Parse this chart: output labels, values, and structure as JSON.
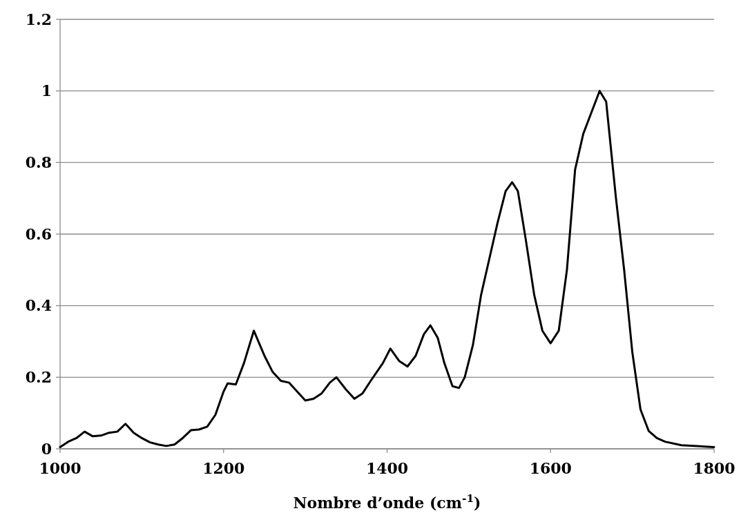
{
  "chart_data": {
    "type": "line",
    "xlabel": "Nombre d’onde (cm$^{-1}$)",
    "xlim": [
      1000,
      1800
    ],
    "xticks": [
      1000,
      1200,
      1400,
      1600,
      1800
    ],
    "ylim": [
      0,
      1.2
    ],
    "yticks": [
      0,
      0.2,
      0.4,
      0.6,
      0.8,
      1,
      1.2
    ],
    "grid": "y",
    "marker": "none",
    "line_style": "solid",
    "series": [
      {
        "color": "#000000",
        "x": [
          1000,
          1010,
          1020,
          1030,
          1040,
          1050,
          1060,
          1070,
          1080,
          1090,
          1100,
          1110,
          1120,
          1130,
          1140,
          1150,
          1160,
          1170,
          1180,
          1190,
          1200,
          1205,
          1215,
          1225,
          1237,
          1250,
          1260,
          1270,
          1280,
          1290,
          1300,
          1310,
          1320,
          1330,
          1338,
          1350,
          1360,
          1370,
          1380,
          1395,
          1404,
          1415,
          1425,
          1435,
          1445,
          1453,
          1462,
          1470,
          1480,
          1488,
          1495,
          1505,
          1515,
          1525,
          1535,
          1545,
          1553,
          1560,
          1570,
          1580,
          1590,
          1600,
          1610,
          1620,
          1630,
          1640,
          1650,
          1660,
          1668,
          1680,
          1690,
          1700,
          1710,
          1720,
          1730,
          1740,
          1760,
          1800
        ],
        "values": [
          0.005,
          0.02,
          0.03,
          0.048,
          0.035,
          0.037,
          0.045,
          0.048,
          0.07,
          0.045,
          0.03,
          0.018,
          0.012,
          0.008,
          0.012,
          0.03,
          0.052,
          0.054,
          0.062,
          0.095,
          0.16,
          0.183,
          0.18,
          0.24,
          0.33,
          0.26,
          0.215,
          0.19,
          0.185,
          0.16,
          0.135,
          0.14,
          0.155,
          0.185,
          0.2,
          0.165,
          0.14,
          0.155,
          0.19,
          0.24,
          0.28,
          0.245,
          0.23,
          0.26,
          0.32,
          0.345,
          0.31,
          0.24,
          0.175,
          0.17,
          0.2,
          0.29,
          0.43,
          0.53,
          0.63,
          0.72,
          0.745,
          0.72,
          0.58,
          0.43,
          0.33,
          0.295,
          0.33,
          0.5,
          0.78,
          0.88,
          0.94,
          1.0,
          0.97,
          0.7,
          0.5,
          0.27,
          0.11,
          0.05,
          0.03,
          0.02,
          0.01,
          0.005
        ]
      }
    ]
  }
}
